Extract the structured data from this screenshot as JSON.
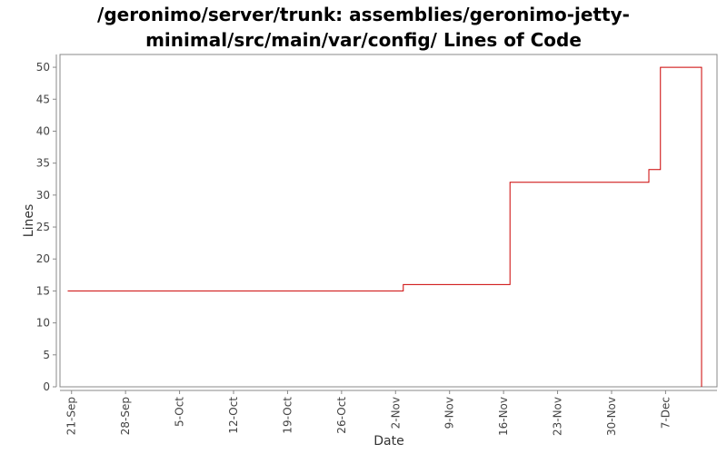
{
  "chart_data": {
    "type": "line",
    "title_lines": [
      "/geronimo/server/trunk: assemblies/geronimo-jetty-",
      "minimal/src/main/var/config/ Lines of Code"
    ],
    "xlabel": "Date",
    "ylabel": "Lines",
    "x_ticks": [
      {
        "date": "2008-09-21",
        "label": "21-Sep"
      },
      {
        "date": "2008-09-28",
        "label": "28-Sep"
      },
      {
        "date": "2008-10-05",
        "label": "5-Oct"
      },
      {
        "date": "2008-10-12",
        "label": "12-Oct"
      },
      {
        "date": "2008-10-19",
        "label": "19-Oct"
      },
      {
        "date": "2008-10-26",
        "label": "26-Oct"
      },
      {
        "date": "2008-11-02",
        "label": "2-Nov"
      },
      {
        "date": "2008-11-09",
        "label": "9-Nov"
      },
      {
        "date": "2008-11-16",
        "label": "16-Nov"
      },
      {
        "date": "2008-11-23",
        "label": "23-Nov"
      },
      {
        "date": "2008-11-30",
        "label": "30-Nov"
      },
      {
        "date": "2008-12-07",
        "label": "7-Dec"
      }
    ],
    "y_ticks": [
      0,
      5,
      10,
      15,
      20,
      25,
      30,
      35,
      40,
      45,
      50
    ],
    "xlim": [
      "2008-09-19T12:00",
      "2008-12-13T16:00"
    ],
    "ylim": [
      0,
      52
    ],
    "grid": false,
    "step": "post",
    "series_color": "#cc0000",
    "series": [
      {
        "points": [
          {
            "x": "2008-09-20T12:00",
            "y": 15
          },
          {
            "x": "2008-11-03T00:00",
            "y": 16
          },
          {
            "x": "2008-11-16T20:00",
            "y": 32
          },
          {
            "x": "2008-12-04T20:00",
            "y": 34
          },
          {
            "x": "2008-12-06T08:00",
            "y": 50
          },
          {
            "x": "2008-12-11T16:00",
            "y": 0
          }
        ]
      }
    ]
  }
}
